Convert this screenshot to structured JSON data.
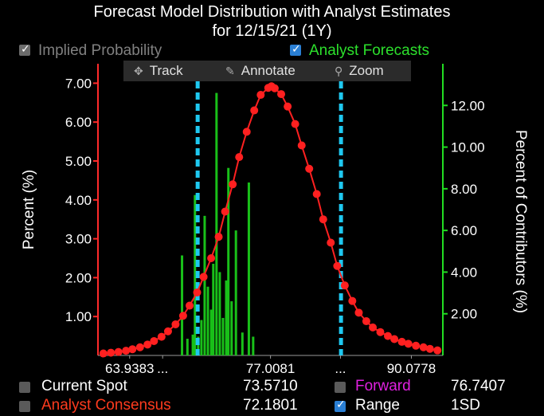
{
  "title_line1": "Forecast Model Distribution with Analyst Estimates",
  "title_line2": "for  12/15/21 (1Y)",
  "controls": {
    "implied_probability": "Implied Probability",
    "analyst_forecasts": "Analyst Forecasts",
    "track": "Track",
    "annotate": "Annotate",
    "zoom": "Zoom"
  },
  "legend": {
    "current_spot_label": "Current Spot",
    "current_spot_value": "73.5710",
    "forward_label": "Forward",
    "forward_value": "76.7407",
    "consensus_label": "Analyst Consensus",
    "consensus_value": "72.1801",
    "range_label": "Range",
    "range_value": "1SD"
  },
  "colors": {
    "curve": "#ff2020",
    "bars": "#19c019",
    "dashed": "#1ec8f0",
    "right_axis": "#22dd22",
    "forward": "#e020e0",
    "consensus": "#ff3b1e"
  },
  "chart_data": {
    "type": "line",
    "xlim": [
      61.0,
      93.0
    ],
    "x_tick_labels": [
      {
        "x": 63.9383,
        "label": "63.9383"
      },
      {
        "x": 67.0,
        "label": "..."
      },
      {
        "x": 77.0081,
        "label": "77.0081"
      },
      {
        "x": 83.5,
        "label": "..."
      },
      {
        "x": 90.0778,
        "label": "90.0778"
      }
    ],
    "left_axis": {
      "label": "Percent (%)",
      "ylim": [
        0,
        7.5
      ],
      "ticks": [
        1.0,
        2.0,
        3.0,
        4.0,
        5.0,
        6.0,
        7.0
      ],
      "tick_labels": [
        "1.00",
        "2.00",
        "3.00",
        "4.00",
        "5.00",
        "6.00",
        "7.00"
      ]
    },
    "right_axis": {
      "label": "Percent of Contributors (%)",
      "ylim": [
        0,
        14.0
      ],
      "ticks": [
        2.0,
        4.0,
        6.0,
        8.0,
        10.0,
        12.0
      ],
      "tick_labels": [
        "2.00",
        "4.00",
        "6.00",
        "8.00",
        "10.00",
        "12.00"
      ]
    },
    "series": [
      {
        "name": "Implied Probability",
        "axis": "left",
        "x": [
          61.5,
          62.2,
          62.9,
          63.6,
          64.2,
          64.9,
          65.6,
          66.2,
          66.9,
          67.5,
          68.2,
          68.9,
          69.5,
          70.2,
          70.8,
          71.5,
          72.2,
          72.8,
          73.5,
          74.1,
          74.8,
          75.5,
          76.1,
          76.8,
          77.1,
          77.4,
          78.0,
          78.6,
          79.3,
          79.9,
          80.6,
          81.3,
          81.9,
          82.6,
          83.2,
          83.9,
          84.6,
          85.2,
          85.9,
          86.5,
          87.2,
          87.9,
          88.5,
          89.2,
          89.8,
          90.5,
          91.2,
          91.8,
          92.5
        ],
        "y": [
          0.05,
          0.07,
          0.09,
          0.12,
          0.16,
          0.21,
          0.28,
          0.37,
          0.48,
          0.62,
          0.8,
          1.02,
          1.28,
          1.62,
          2.02,
          2.5,
          3.05,
          3.7,
          4.4,
          5.1,
          5.75,
          6.3,
          6.7,
          6.88,
          6.92,
          6.87,
          6.72,
          6.4,
          5.95,
          5.4,
          4.8,
          4.15,
          3.5,
          2.9,
          2.3,
          1.8,
          1.4,
          1.1,
          0.88,
          0.72,
          0.6,
          0.5,
          0.42,
          0.35,
          0.3,
          0.25,
          0.21,
          0.17,
          0.13
        ]
      },
      {
        "name": "Analyst Forecasts",
        "axis": "right",
        "type": "bar",
        "x": [
          68.8,
          69.3,
          69.8,
          70.0,
          70.3,
          70.6,
          70.9,
          71.2,
          71.5,
          71.7,
          72.0,
          72.3,
          72.6,
          72.9,
          73.1,
          73.4,
          73.8,
          74.4,
          75.0,
          75.4
        ],
        "y": [
          4.8,
          0.8,
          1.0,
          7.7,
          0.9,
          1.7,
          6.7,
          3.3,
          2.2,
          4.4,
          12.6,
          4.0,
          1.8,
          3.6,
          9.0,
          2.6,
          6.0,
          1.1,
          8.3,
          0.9
        ]
      }
    ],
    "vertical_lines": [
      {
        "x": 70.25,
        "style": "dashed"
      },
      {
        "x": 83.55,
        "style": "dashed"
      }
    ]
  }
}
